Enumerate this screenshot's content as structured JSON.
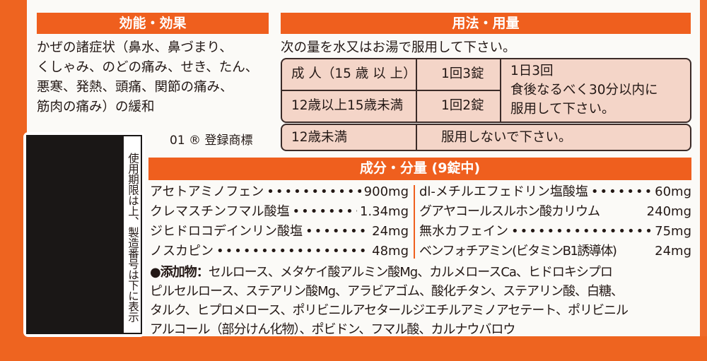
{
  "efficacy": {
    "header": "効能・効果",
    "lines": [
      "かぜの諸症状（鼻水、鼻づまり、",
      "くしゃみ、のどの痛み、せき、たん、",
      "悪寒、発熱、頭痛、関節の痛み、",
      "筋肉の痛み）の緩和"
    ],
    "trademark": "01 ® 登録商標"
  },
  "lot_box": {
    "label": "使用期限は上、製造番号は下に表示"
  },
  "dosage": {
    "header": "用法・用量",
    "intro": "次の量を水又はお湯で服用して下さい。",
    "rows": [
      {
        "age": "成 人（15 歳 以 上）",
        "amount": "1回3錠"
      },
      {
        "age": "12歳以上15歳未満",
        "amount": "1回2錠"
      }
    ],
    "frequency": [
      "1日3回",
      "食後なるべく30分以内に",
      "服用して下さい。"
    ],
    "under12": {
      "age": "12歳未満",
      "note": "服用しないで下さい。"
    }
  },
  "ingredients": {
    "header": "成分・分量 (9錠中)",
    "left": [
      {
        "name": "アセトアミノフェン",
        "amount": "900mg"
      },
      {
        "name": "クレマスチンフマル酸塩",
        "amount": "1.34mg"
      },
      {
        "name": "ジヒドロコデインリン酸塩",
        "amount": "24mg"
      },
      {
        "name": "ノスカピン",
        "amount": "48mg"
      }
    ],
    "right": [
      {
        "name": "dl-メチルエフェドリン塩酸塩",
        "amount": "60mg"
      },
      {
        "name": "グアヤコールスルホン酸カリウム",
        "amount": "240mg"
      },
      {
        "name": "無水カフェイン",
        "amount": "75mg"
      },
      {
        "name": "ベンフォチアミン(ビタミンB1誘導体)",
        "amount": "24mg"
      }
    ],
    "additives_label": "●添加物：",
    "additives_lines": [
      "セルロース、メタケイ酸アルミン酸Mg、カルメロースCa、ヒドロキシプロ",
      "ピルセルロース、ステアリン酸Mg、アラビアゴム、酸化チタン、ステアリン酸、白糖、",
      "タルク、ヒプロメロース、ポリビニルアセタールジエチルアミノアセテート、ポリビニル",
      "アルコール（部分けん化物）、ポビドン、フマル酸、カルナウバロウ"
    ]
  },
  "colors": {
    "brand_orange": "#ef5f1e",
    "table_fill": "#f4d5c8",
    "text": "#231815"
  }
}
